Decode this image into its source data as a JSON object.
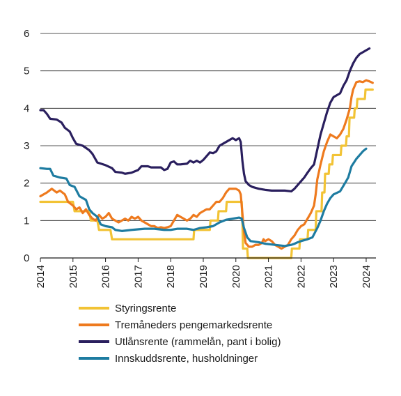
{
  "chart_data": {
    "type": "line",
    "title": "",
    "xlabel": "",
    "ylabel": "",
    "xlim": [
      2014,
      2024.3
    ],
    "ylim": [
      0,
      6
    ],
    "yticks": [
      "0",
      "1",
      "2",
      "3",
      "4",
      "5",
      "6"
    ],
    "xticks": [
      "2014",
      "2015",
      "2016",
      "2017",
      "2018",
      "2019",
      "2020",
      "2021",
      "2022",
      "2023",
      "2024"
    ],
    "grid": "horizontal",
    "legend_position": "bottom",
    "series": [
      {
        "name": "Styringsrente",
        "color": "#f2c335",
        "step": true,
        "points": [
          [
            2014,
            1.5
          ],
          [
            2015.0,
            1.5
          ],
          [
            2015.05,
            1.25
          ],
          [
            2015.5,
            1.25
          ],
          [
            2015.55,
            1.0
          ],
          [
            2015.75,
            1.0
          ],
          [
            2015.8,
            0.75
          ],
          [
            2016.15,
            0.75
          ],
          [
            2016.2,
            0.5
          ],
          [
            2018.7,
            0.5
          ],
          [
            2018.72,
            0.75
          ],
          [
            2019.2,
            0.75
          ],
          [
            2019.22,
            1.0
          ],
          [
            2019.45,
            1.0
          ],
          [
            2019.47,
            1.25
          ],
          [
            2019.7,
            1.25
          ],
          [
            2019.72,
            1.5
          ],
          [
            2020.18,
            1.5
          ],
          [
            2020.2,
            1.0
          ],
          [
            2020.22,
            0.25
          ],
          [
            2020.35,
            0.25
          ],
          [
            2020.37,
            0.0
          ],
          [
            2021.7,
            0.0
          ],
          [
            2021.72,
            0.25
          ],
          [
            2021.95,
            0.25
          ],
          [
            2021.97,
            0.5
          ],
          [
            2022.2,
            0.5
          ],
          [
            2022.22,
            0.75
          ],
          [
            2022.45,
            0.75
          ],
          [
            2022.47,
            1.25
          ],
          [
            2022.63,
            1.25
          ],
          [
            2022.65,
            1.75
          ],
          [
            2022.72,
            1.75
          ],
          [
            2022.74,
            2.25
          ],
          [
            2022.85,
            2.25
          ],
          [
            2022.87,
            2.5
          ],
          [
            2022.96,
            2.5
          ],
          [
            2022.98,
            2.75
          ],
          [
            2023.22,
            2.75
          ],
          [
            2023.24,
            3.0
          ],
          [
            2023.38,
            3.0
          ],
          [
            2023.4,
            3.25
          ],
          [
            2023.47,
            3.25
          ],
          [
            2023.49,
            3.75
          ],
          [
            2023.63,
            3.75
          ],
          [
            2023.65,
            4.0
          ],
          [
            2023.71,
            4.0
          ],
          [
            2023.73,
            4.25
          ],
          [
            2023.96,
            4.25
          ],
          [
            2023.98,
            4.5
          ],
          [
            2024.2,
            4.5
          ]
        ]
      },
      {
        "name": "Tremåneders pengemarkedsrente",
        "color": "#ee7a1e",
        "step": false,
        "points": [
          [
            2014,
            1.65
          ],
          [
            2014.1,
            1.7
          ],
          [
            2014.2,
            1.75
          ],
          [
            2014.35,
            1.85
          ],
          [
            2014.5,
            1.75
          ],
          [
            2014.6,
            1.8
          ],
          [
            2014.75,
            1.7
          ],
          [
            2014.85,
            1.5
          ],
          [
            2015.0,
            1.4
          ],
          [
            2015.1,
            1.3
          ],
          [
            2015.2,
            1.35
          ],
          [
            2015.3,
            1.2
          ],
          [
            2015.4,
            1.3
          ],
          [
            2015.5,
            1.15
          ],
          [
            2015.6,
            1.05
          ],
          [
            2015.7,
            1.0
          ],
          [
            2015.8,
            1.15
          ],
          [
            2015.9,
            1.05
          ],
          [
            2016.0,
            1.1
          ],
          [
            2016.1,
            1.2
          ],
          [
            2016.2,
            1.05
          ],
          [
            2016.3,
            1.0
          ],
          [
            2016.4,
            0.95
          ],
          [
            2016.5,
            1.0
          ],
          [
            2016.6,
            1.05
          ],
          [
            2016.7,
            1.0
          ],
          [
            2016.8,
            1.1
          ],
          [
            2016.9,
            1.05
          ],
          [
            2017.0,
            1.1
          ],
          [
            2017.1,
            1.0
          ],
          [
            2017.2,
            0.95
          ],
          [
            2017.3,
            0.9
          ],
          [
            2017.4,
            0.85
          ],
          [
            2017.5,
            0.85
          ],
          [
            2017.6,
            0.8
          ],
          [
            2017.7,
            0.82
          ],
          [
            2017.8,
            0.8
          ],
          [
            2017.9,
            0.82
          ],
          [
            2018.0,
            0.85
          ],
          [
            2018.1,
            1.0
          ],
          [
            2018.2,
            1.15
          ],
          [
            2018.3,
            1.1
          ],
          [
            2018.4,
            1.05
          ],
          [
            2018.5,
            1.0
          ],
          [
            2018.6,
            1.05
          ],
          [
            2018.7,
            1.15
          ],
          [
            2018.8,
            1.1
          ],
          [
            2018.9,
            1.2
          ],
          [
            2019.0,
            1.25
          ],
          [
            2019.1,
            1.3
          ],
          [
            2019.2,
            1.3
          ],
          [
            2019.3,
            1.4
          ],
          [
            2019.4,
            1.5
          ],
          [
            2019.5,
            1.5
          ],
          [
            2019.6,
            1.6
          ],
          [
            2019.7,
            1.75
          ],
          [
            2019.8,
            1.85
          ],
          [
            2019.9,
            1.85
          ],
          [
            2020.0,
            1.85
          ],
          [
            2020.1,
            1.8
          ],
          [
            2020.15,
            1.7
          ],
          [
            2020.2,
            1.2
          ],
          [
            2020.25,
            0.7
          ],
          [
            2020.3,
            0.4
          ],
          [
            2020.4,
            0.3
          ],
          [
            2020.5,
            0.3
          ],
          [
            2020.6,
            0.35
          ],
          [
            2020.7,
            0.35
          ],
          [
            2020.8,
            0.4
          ],
          [
            2020.85,
            0.5
          ],
          [
            2020.9,
            0.45
          ],
          [
            2021.0,
            0.5
          ],
          [
            2021.1,
            0.45
          ],
          [
            2021.2,
            0.35
          ],
          [
            2021.3,
            0.3
          ],
          [
            2021.4,
            0.25
          ],
          [
            2021.5,
            0.3
          ],
          [
            2021.6,
            0.35
          ],
          [
            2021.7,
            0.5
          ],
          [
            2021.8,
            0.6
          ],
          [
            2021.9,
            0.75
          ],
          [
            2022.0,
            0.85
          ],
          [
            2022.1,
            0.9
          ],
          [
            2022.2,
            1.05
          ],
          [
            2022.3,
            1.2
          ],
          [
            2022.4,
            1.4
          ],
          [
            2022.45,
            1.7
          ],
          [
            2022.5,
            2.1
          ],
          [
            2022.6,
            2.5
          ],
          [
            2022.7,
            2.85
          ],
          [
            2022.8,
            3.1
          ],
          [
            2022.9,
            3.3
          ],
          [
            2023.0,
            3.25
          ],
          [
            2023.1,
            3.2
          ],
          [
            2023.2,
            3.3
          ],
          [
            2023.3,
            3.45
          ],
          [
            2023.4,
            3.7
          ],
          [
            2023.5,
            4.0
          ],
          [
            2023.55,
            4.3
          ],
          [
            2023.6,
            4.5
          ],
          [
            2023.7,
            4.7
          ],
          [
            2023.8,
            4.72
          ],
          [
            2023.9,
            4.7
          ],
          [
            2024.0,
            4.75
          ],
          [
            2024.1,
            4.72
          ],
          [
            2024.2,
            4.68
          ]
        ]
      },
      {
        "name": "Utlånsrente (rammelån, pant i bolig)",
        "color": "#2a1f5e",
        "step": false,
        "points": [
          [
            2014,
            3.95
          ],
          [
            2014.1,
            3.95
          ],
          [
            2014.2,
            3.85
          ],
          [
            2014.3,
            3.72
          ],
          [
            2014.5,
            3.7
          ],
          [
            2014.65,
            3.62
          ],
          [
            2014.75,
            3.48
          ],
          [
            2014.9,
            3.38
          ],
          [
            2015.0,
            3.2
          ],
          [
            2015.1,
            3.05
          ],
          [
            2015.3,
            3.0
          ],
          [
            2015.5,
            2.88
          ],
          [
            2015.6,
            2.78
          ],
          [
            2015.75,
            2.55
          ],
          [
            2016.0,
            2.48
          ],
          [
            2016.2,
            2.4
          ],
          [
            2016.3,
            2.3
          ],
          [
            2016.5,
            2.28
          ],
          [
            2016.6,
            2.25
          ],
          [
            2016.8,
            2.28
          ],
          [
            2017.0,
            2.35
          ],
          [
            2017.1,
            2.45
          ],
          [
            2017.3,
            2.45
          ],
          [
            2017.4,
            2.42
          ],
          [
            2017.7,
            2.42
          ],
          [
            2017.8,
            2.35
          ],
          [
            2017.9,
            2.38
          ],
          [
            2018.0,
            2.55
          ],
          [
            2018.1,
            2.58
          ],
          [
            2018.2,
            2.5
          ],
          [
            2018.3,
            2.5
          ],
          [
            2018.5,
            2.52
          ],
          [
            2018.6,
            2.6
          ],
          [
            2018.7,
            2.55
          ],
          [
            2018.8,
            2.6
          ],
          [
            2018.9,
            2.55
          ],
          [
            2019.0,
            2.62
          ],
          [
            2019.2,
            2.82
          ],
          [
            2019.3,
            2.8
          ],
          [
            2019.4,
            2.85
          ],
          [
            2019.5,
            3.0
          ],
          [
            2019.6,
            3.05
          ],
          [
            2019.8,
            3.15
          ],
          [
            2019.9,
            3.2
          ],
          [
            2020.0,
            3.15
          ],
          [
            2020.1,
            3.2
          ],
          [
            2020.15,
            3.1
          ],
          [
            2020.2,
            2.6
          ],
          [
            2020.25,
            2.25
          ],
          [
            2020.3,
            2.05
          ],
          [
            2020.4,
            1.95
          ],
          [
            2020.5,
            1.9
          ],
          [
            2020.7,
            1.85
          ],
          [
            2020.9,
            1.82
          ],
          [
            2021.1,
            1.8
          ],
          [
            2021.3,
            1.8
          ],
          [
            2021.5,
            1.8
          ],
          [
            2021.7,
            1.78
          ],
          [
            2021.8,
            1.85
          ],
          [
            2021.9,
            1.95
          ],
          [
            2022.0,
            2.05
          ],
          [
            2022.1,
            2.15
          ],
          [
            2022.2,
            2.28
          ],
          [
            2022.3,
            2.4
          ],
          [
            2022.4,
            2.5
          ],
          [
            2022.5,
            2.9
          ],
          [
            2022.6,
            3.3
          ],
          [
            2022.7,
            3.6
          ],
          [
            2022.8,
            3.9
          ],
          [
            2022.9,
            4.15
          ],
          [
            2023.0,
            4.3
          ],
          [
            2023.2,
            4.4
          ],
          [
            2023.3,
            4.6
          ],
          [
            2023.4,
            4.75
          ],
          [
            2023.5,
            5.0
          ],
          [
            2023.6,
            5.2
          ],
          [
            2023.7,
            5.35
          ],
          [
            2023.8,
            5.45
          ],
          [
            2023.9,
            5.5
          ],
          [
            2024.0,
            5.55
          ],
          [
            2024.1,
            5.6
          ]
        ]
      },
      {
        "name": "Innskuddsrente, husholdninger",
        "color": "#1e7ca1",
        "step": false,
        "points": [
          [
            2014,
            2.4
          ],
          [
            2014.2,
            2.38
          ],
          [
            2014.3,
            2.38
          ],
          [
            2014.4,
            2.2
          ],
          [
            2014.6,
            2.15
          ],
          [
            2014.8,
            2.12
          ],
          [
            2014.9,
            1.95
          ],
          [
            2015.05,
            1.9
          ],
          [
            2015.2,
            1.65
          ],
          [
            2015.4,
            1.55
          ],
          [
            2015.5,
            1.3
          ],
          [
            2015.6,
            1.2
          ],
          [
            2015.75,
            1.1
          ],
          [
            2015.85,
            0.9
          ],
          [
            2016.0,
            0.85
          ],
          [
            2016.2,
            0.82
          ],
          [
            2016.3,
            0.75
          ],
          [
            2016.5,
            0.72
          ],
          [
            2016.8,
            0.75
          ],
          [
            2017.2,
            0.78
          ],
          [
            2017.5,
            0.78
          ],
          [
            2017.8,
            0.75
          ],
          [
            2018.0,
            0.75
          ],
          [
            2018.2,
            0.78
          ],
          [
            2018.5,
            0.78
          ],
          [
            2018.7,
            0.75
          ],
          [
            2018.9,
            0.8
          ],
          [
            2019.1,
            0.82
          ],
          [
            2019.3,
            0.85
          ],
          [
            2019.5,
            0.95
          ],
          [
            2019.7,
            1.02
          ],
          [
            2019.9,
            1.05
          ],
          [
            2020.1,
            1.08
          ],
          [
            2020.18,
            1.05
          ],
          [
            2020.25,
            0.8
          ],
          [
            2020.35,
            0.55
          ],
          [
            2020.45,
            0.45
          ],
          [
            2020.7,
            0.42
          ],
          [
            2020.9,
            0.38
          ],
          [
            2021.2,
            0.35
          ],
          [
            2021.5,
            0.32
          ],
          [
            2021.7,
            0.35
          ],
          [
            2021.8,
            0.38
          ],
          [
            2021.9,
            0.42
          ],
          [
            2022.0,
            0.45
          ],
          [
            2022.2,
            0.5
          ],
          [
            2022.35,
            0.55
          ],
          [
            2022.5,
            0.8
          ],
          [
            2022.6,
            1.0
          ],
          [
            2022.7,
            1.25
          ],
          [
            2022.8,
            1.45
          ],
          [
            2022.9,
            1.6
          ],
          [
            2023.0,
            1.7
          ],
          [
            2023.2,
            1.78
          ],
          [
            2023.35,
            2.0
          ],
          [
            2023.45,
            2.15
          ],
          [
            2023.55,
            2.45
          ],
          [
            2023.7,
            2.65
          ],
          [
            2023.8,
            2.75
          ],
          [
            2023.9,
            2.85
          ],
          [
            2024.0,
            2.92
          ]
        ]
      }
    ]
  }
}
